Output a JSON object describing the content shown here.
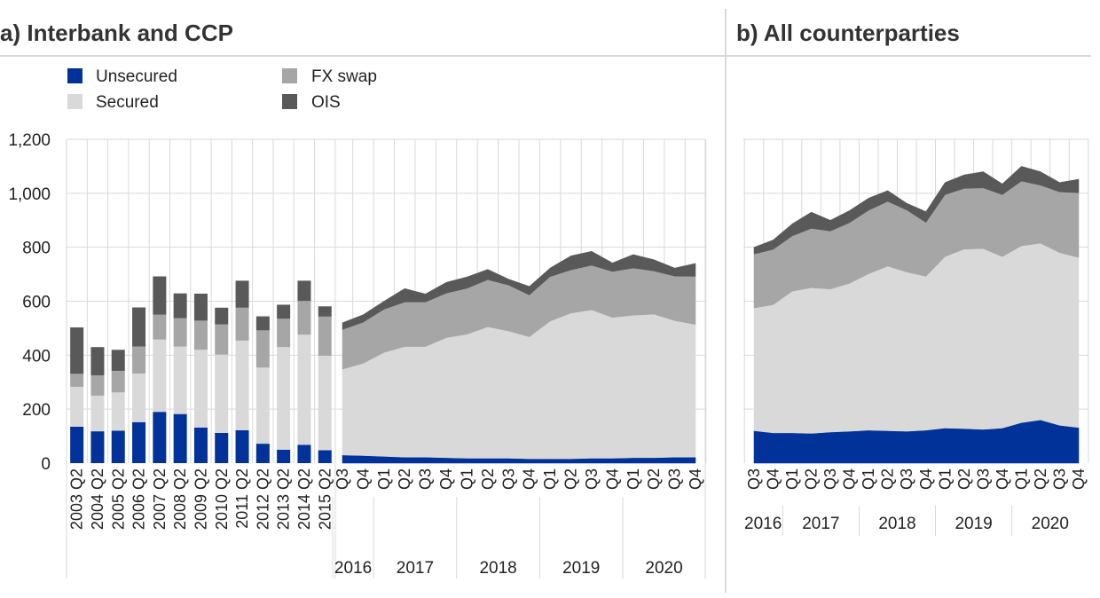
{
  "panel_a": {
    "title": "a) Interbank and CCP"
  },
  "panel_b": {
    "title": "b) All counterparties"
  },
  "legend": {
    "unsecured": "Unsecured",
    "secured": "Secured",
    "fx_swap": "FX swap",
    "ois": "OIS"
  },
  "colors": {
    "unsecured": "#003299",
    "secured": "#d9d9d9",
    "fx_swap": "#a6a6a6",
    "ois": "#595959",
    "grid": "#d9d9d9",
    "rule": "#d9d9d9"
  },
  "chart_data": [
    {
      "type": "bar",
      "stacked": true,
      "panel": "a",
      "categories": [
        "2003 Q2",
        "2004 Q2",
        "2005 Q2",
        "2006 Q2",
        "2007 Q2",
        "2008 Q2",
        "2009 Q2",
        "2010 Q2",
        "2011 Q2",
        "2012 Q2",
        "2013 Q2",
        "2014 Q2",
        "2015 Q2"
      ],
      "series": [
        {
          "name": "Unsecured",
          "values": [
            135,
            118,
            120,
            152,
            190,
            182,
            132,
            112,
            122,
            72,
            50,
            68,
            48
          ]
        },
        {
          "name": "Secured",
          "values": [
            148,
            132,
            142,
            180,
            268,
            250,
            288,
            290,
            332,
            282,
            380,
            408,
            350
          ]
        },
        {
          "name": "FX swap",
          "values": [
            48,
            75,
            80,
            100,
            92,
            105,
            108,
            112,
            122,
            138,
            105,
            125,
            145
          ]
        },
        {
          "name": "OIS",
          "values": [
            172,
            105,
            78,
            145,
            142,
            92,
            100,
            62,
            100,
            52,
            52,
            75,
            38
          ]
        }
      ],
      "ylim": [
        0,
        1200
      ],
      "yticks": [
        "0",
        "200",
        "400",
        "600",
        "800",
        "1,000",
        "1,200"
      ],
      "grid": true,
      "legend_position": "top-left"
    },
    {
      "type": "area",
      "stacked": true,
      "panel": "a",
      "x": [
        "Q3",
        "Q4",
        "Q1",
        "Q2",
        "Q3",
        "Q4",
        "Q1",
        "Q2",
        "Q3",
        "Q4",
        "Q1",
        "Q2",
        "Q3",
        "Q4",
        "Q1",
        "Q2",
        "Q3",
        "Q4"
      ],
      "years": [
        {
          "label": "2016",
          "span": 2
        },
        {
          "label": "2017",
          "span": 4
        },
        {
          "label": "2018",
          "span": 4
        },
        {
          "label": "2019",
          "span": 4
        },
        {
          "label": "2020",
          "span": 4
        }
      ],
      "series": [
        {
          "name": "Unsecured",
          "values": [
            30,
            28,
            25,
            22,
            22,
            20,
            18,
            18,
            18,
            16,
            16,
            16,
            18,
            18,
            20,
            20,
            22,
            22
          ]
        },
        {
          "name": "Secured",
          "values": [
            318,
            342,
            385,
            410,
            410,
            445,
            460,
            487,
            472,
            452,
            510,
            540,
            550,
            522,
            528,
            532,
            506,
            492
          ]
        },
        {
          "name": "FX swap",
          "values": [
            147,
            152,
            160,
            165,
            165,
            165,
            170,
            175,
            170,
            155,
            165,
            160,
            165,
            170,
            175,
            160,
            165,
            178
          ]
        },
        {
          "name": "OIS",
          "values": [
            25,
            28,
            30,
            50,
            30,
            40,
            42,
            38,
            22,
            32,
            32,
            52,
            52,
            32,
            50,
            42,
            30,
            48
          ]
        }
      ],
      "ylim": [
        0,
        1200
      ],
      "grid": true
    },
    {
      "type": "area",
      "stacked": true,
      "panel": "b",
      "x": [
        "Q3",
        "Q4",
        "Q1",
        "Q2",
        "Q3",
        "Q4",
        "Q1",
        "Q2",
        "Q3",
        "Q4",
        "Q1",
        "Q2",
        "Q3",
        "Q4",
        "Q1",
        "Q2",
        "Q3",
        "Q4"
      ],
      "years": [
        {
          "label": "2016",
          "span": 2
        },
        {
          "label": "2017",
          "span": 4
        },
        {
          "label": "2018",
          "span": 4
        },
        {
          "label": "2019",
          "span": 4
        },
        {
          "label": "2020",
          "span": 4
        }
      ],
      "series": [
        {
          "name": "Unsecured",
          "values": [
            120,
            112,
            112,
            110,
            115,
            118,
            122,
            120,
            118,
            122,
            130,
            128,
            125,
            130,
            150,
            160,
            140,
            132
          ]
        },
        {
          "name": "Secured",
          "values": [
            455,
            475,
            525,
            540,
            530,
            548,
            580,
            610,
            590,
            570,
            635,
            665,
            670,
            635,
            655,
            655,
            640,
            630
          ]
        },
        {
          "name": "FX swap",
          "values": [
            200,
            205,
            205,
            220,
            215,
            225,
            235,
            240,
            230,
            200,
            230,
            225,
            225,
            230,
            240,
            215,
            225,
            240
          ]
        },
        {
          "name": "OIS",
          "values": [
            25,
            35,
            45,
            60,
            40,
            45,
            45,
            40,
            25,
            40,
            45,
            50,
            60,
            40,
            55,
            50,
            35,
            50
          ]
        }
      ],
      "ylim": [
        0,
        1200
      ],
      "grid": true
    }
  ]
}
